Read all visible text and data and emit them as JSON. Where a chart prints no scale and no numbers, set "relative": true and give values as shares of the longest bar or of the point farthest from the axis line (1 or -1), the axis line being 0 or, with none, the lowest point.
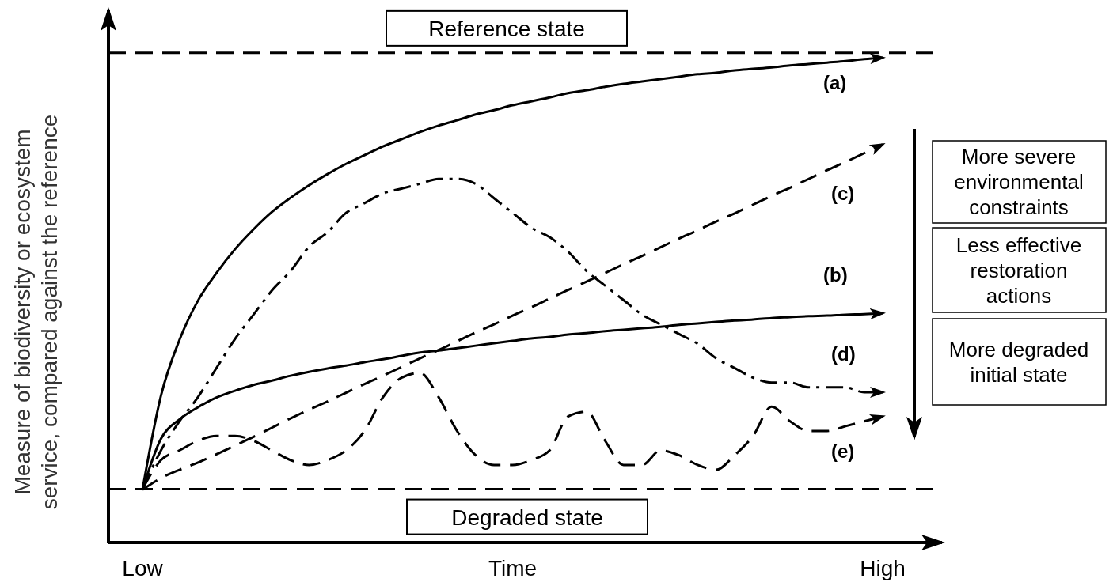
{
  "chart_data": {
    "type": "line",
    "relative": true,
    "xlabel": "Time",
    "ylabel": "Measure of biodiversity or ecosystem service, compared against the reference",
    "categories": [
      "Low",
      null,
      null,
      null,
      null,
      null,
      null,
      null,
      null,
      null,
      null,
      null,
      null,
      null,
      null,
      null,
      null,
      null,
      null,
      null,
      null,
      null,
      null,
      null,
      null,
      null,
      null,
      null,
      null,
      null,
      null,
      null,
      null,
      null,
      null,
      null,
      null,
      null,
      null,
      null,
      "High"
    ],
    "tick_labels": "x",
    "series": [
      {
        "name": "(a)",
        "color": "#000000",
        "line_style": "solid",
        "values": [
          0.109,
          0.303,
          0.418,
          0.499,
          0.556,
          0.605,
          0.646,
          0.682,
          0.711,
          0.737,
          0.76,
          0.781,
          0.799,
          0.817,
          0.832,
          0.847,
          0.86,
          0.871,
          0.883,
          0.892,
          0.902,
          0.91,
          0.918,
          0.927,
          0.933,
          0.94,
          0.946,
          0.951,
          0.956,
          0.961,
          0.966,
          0.969,
          0.974,
          0.977,
          0.98,
          0.984,
          0.987,
          0.99,
          0.993,
          0.997,
          1
        ]
      },
      {
        "name": "(b)",
        "color": "#000000",
        "line_style": "solid",
        "values": [
          0.109,
          0.214,
          0.254,
          0.279,
          0.299,
          0.313,
          0.325,
          0.334,
          0.344,
          0.352,
          0.359,
          0.365,
          0.372,
          0.378,
          0.385,
          0.392,
          0.396,
          0.401,
          0.406,
          0.411,
          0.416,
          0.421,
          0.424,
          0.429,
          0.432,
          0.436,
          0.439,
          0.442,
          0.445,
          0.449,
          0.452,
          0.455,
          0.458,
          0.46,
          0.463,
          0.465,
          0.467,
          0.468,
          0.47,
          0.471,
          0.473
        ]
      },
      {
        "name": "(c)",
        "color": "#000000",
        "line_style": "dashed",
        "values": [
          0.109,
          0.133,
          0.15,
          0.165,
          0.182,
          0.2,
          0.218,
          0.237,
          0.256,
          0.274,
          0.291,
          0.309,
          0.327,
          0.344,
          0.362,
          0.38,
          0.397,
          0.415,
          0.433,
          0.45,
          0.468,
          0.485,
          0.503,
          0.521,
          0.538,
          0.556,
          0.574,
          0.591,
          0.609,
          0.627,
          0.644,
          0.662,
          0.679,
          0.697,
          0.715,
          0.732,
          0.75,
          0.768,
          0.785,
          0.803,
          0.821
        ]
      },
      {
        "name": "(d)",
        "color": "#000000",
        "line_style": "dashdot",
        "values": [
          0.11,
          0.19,
          0.25,
          0.3,
          0.36,
          0.42,
          0.47,
          0.52,
          0.56,
          0.61,
          0.64,
          0.68,
          0.7,
          0.72,
          0.73,
          0.74,
          0.75,
          0.75,
          0.74,
          0.71,
          0.68,
          0.65,
          0.63,
          0.6,
          0.56,
          0.53,
          0.5,
          0.47,
          0.45,
          0.43,
          0.41,
          0.38,
          0.36,
          0.34,
          0.33,
          0.33,
          0.32,
          0.32,
          0.32,
          0.31,
          0.31
        ]
      },
      {
        "name": "(e)",
        "color": "#000000",
        "line_style": "dashed",
        "values": [
          0.11,
          0.17,
          0.19,
          0.21,
          0.22,
          0.22,
          0.21,
          0.19,
          0.17,
          0.16,
          0.17,
          0.19,
          0.23,
          0.3,
          0.34,
          0.35,
          0.3,
          0.23,
          0.18,
          0.16,
          0.16,
          0.17,
          0.19,
          0.26,
          0.27,
          0.21,
          0.16,
          0.16,
          0.19,
          0.18,
          0.16,
          0.15,
          0.18,
          0.22,
          0.28,
          0.25,
          0.23,
          0.23,
          0.24,
          0.25,
          0.26
        ]
      }
    ],
    "ref_lines": [
      {
        "axis": "y",
        "value": 1.01,
        "label": "Reference state",
        "color": "#000000",
        "line_style": "dashed"
      },
      {
        "axis": "y",
        "value": 0.11,
        "label": "Degraded state",
        "color": "#000000",
        "line_style": "dashed"
      }
    ],
    "annotations": [
      "More severe environmental constraints",
      "Less effective restoration actions",
      "More degraded initial state"
    ]
  }
}
